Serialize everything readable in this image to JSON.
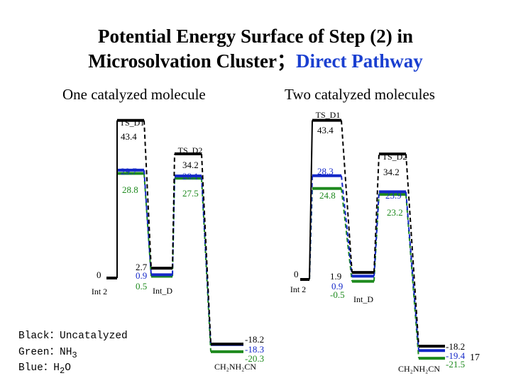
{
  "title_line1": "Potential Energy Surface of Step (2) in",
  "title_line2_main": "Microsolvation Cluster；",
  "title_line2_accent": "Direct Pathway",
  "subtitle_left": "One catalyzed molecule",
  "subtitle_right": "Two catalyzed molecules",
  "legend": {
    "black": "Black：Uncatalyzed",
    "green_prefix": "Green：NH",
    "green_sub": "3",
    "blue_prefix": "Blue：H",
    "blue_sub": "2",
    "blue_suffix": "O"
  },
  "page_number": "17",
  "colors": {
    "black": "#000000",
    "green": "#1e8a1e",
    "blue": "#1428c8",
    "accent": "#1a3fd0"
  },
  "panels": [
    {
      "name": "one-catalyzed",
      "stages": [
        "Int 2",
        "TS_D1",
        "Int_D",
        "TS_D2",
        "CH2NH2CN"
      ],
      "series": [
        {
          "name": "Uncatalyzed",
          "color": "black",
          "energies": [
            0,
            43.4,
            2.7,
            34.2,
            -18.2
          ]
        },
        {
          "name": "H2O",
          "color": "blue",
          "energies": [
            0,
            29.7,
            0.9,
            28.1,
            -18.3
          ]
        },
        {
          "name": "NH3",
          "color": "green",
          "energies": [
            0,
            28.8,
            0.5,
            27.5,
            -20.3
          ]
        }
      ],
      "stage_labels": [
        "Int 2",
        "TS_D1",
        "Int_D",
        "TS_D2",
        "CH₂NH₂CN"
      ],
      "value_labels": {
        "int2": "0",
        "tsd1": [
          "43.4",
          "29.7",
          "28.8"
        ],
        "intd": [
          "2.7",
          "0.9",
          "0.5"
        ],
        "tsd2": [
          "34.2",
          "28.1",
          "27.5"
        ],
        "prod": [
          "-18.2",
          "-18.3",
          "-20.3"
        ]
      }
    },
    {
      "name": "two-catalyzed",
      "stages": [
        "Int 2",
        "TS_D1",
        "Int_D",
        "TS_D2",
        "CH2NH2CN"
      ],
      "series": [
        {
          "name": "Uncatalyzed",
          "color": "black",
          "energies": [
            0,
            43.4,
            1.9,
            34.2,
            -18.2
          ]
        },
        {
          "name": "H2O",
          "color": "blue",
          "energies": [
            0,
            28.3,
            0.9,
            23.9,
            -19.4
          ]
        },
        {
          "name": "NH3",
          "color": "green",
          "energies": [
            0,
            24.8,
            -0.5,
            23.2,
            -21.5
          ]
        }
      ],
      "stage_labels": [
        "Int 2",
        "TS_D1",
        "Int_D",
        "TS_D2",
        "CH₂NH₂CN"
      ],
      "value_labels": {
        "int2": "0",
        "tsd1": [
          "43.4",
          "28.3",
          "24.8"
        ],
        "intd": [
          "1.9",
          "0.9",
          "-0.5"
        ],
        "tsd2": [
          "34.2",
          "23.9",
          "23.2"
        ],
        "prod": [
          "-18.2",
          "-19.4",
          "-21.5"
        ]
      }
    }
  ]
}
